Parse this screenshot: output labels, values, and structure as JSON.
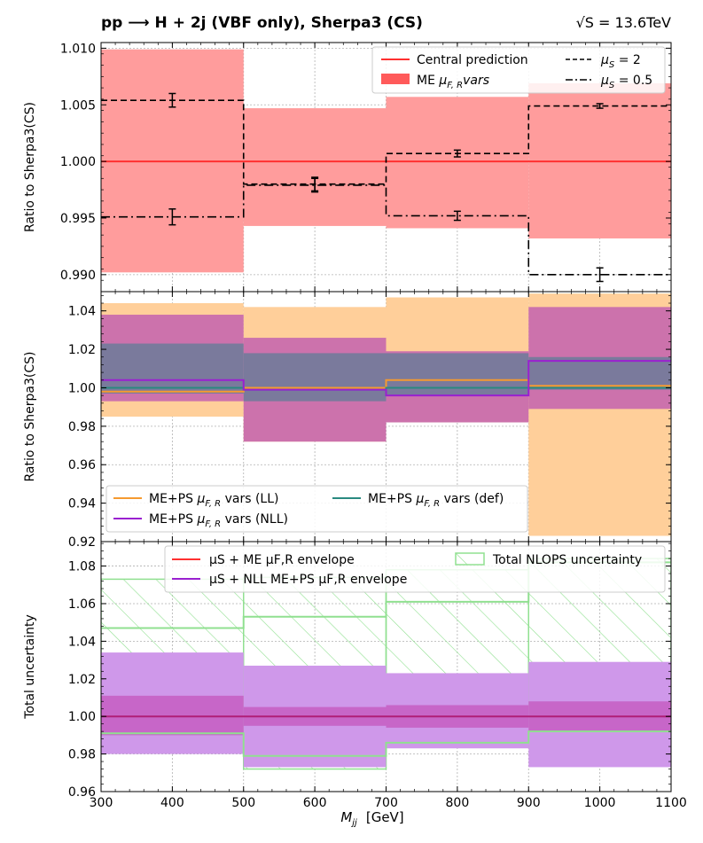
{
  "chart_data": {
    "title_left": "pp ⟶ H + 2j (VBF only), Sherpa3 (CS)",
    "title_right": "√S = 13.6TeV",
    "xlabel_sym": "M",
    "xlabel_sub": "jj",
    "xlabel_unit": "[GeV]",
    "xlim": [
      300,
      1100
    ],
    "xticks": [
      300,
      400,
      500,
      600,
      700,
      800,
      900,
      1000,
      1100
    ],
    "bin_edges": [
      300,
      500,
      700,
      900,
      1100
    ],
    "panels": [
      {
        "id": "scale",
        "type": "step",
        "ylabel": "Ratio to Sherpa3(CS)",
        "ylim": [
          0.9885,
          1.0105
        ],
        "yticks": [
          "0.990",
          "0.995",
          "1.000",
          "1.005",
          "1.010"
        ],
        "yticks_v": [
          0.99,
          0.995,
          1.0,
          1.005,
          1.01
        ],
        "bands": [
          {
            "name": "ME μF,R vars",
            "color": "#ff9c9c",
            "lo": [
              0.9902,
              0.9943,
              0.9941,
              0.9932
            ],
            "hi": [
              1.0099,
              1.0047,
              1.0057,
              1.0069
            ]
          }
        ],
        "series": [
          {
            "name": "Central prediction",
            "color": "#ff3030",
            "style": "solid",
            "values": [
              1.0,
              1.0,
              1.0,
              1.0
            ]
          },
          {
            "name": "μS = 2",
            "color": "#000000",
            "style": "dashed",
            "values": [
              1.0054,
              0.998,
              1.0007,
              1.0049
            ],
            "err": [
              0.0006,
              0.0006,
              0.0003,
              0.0002
            ]
          },
          {
            "name": "μS = 0.5",
            "color": "#000000",
            "style": "dashdot",
            "values": [
              0.9951,
              0.9979,
              0.9952,
              0.99
            ],
            "err": [
              0.0007,
              0.0006,
              0.0004,
              0.0006
            ]
          }
        ],
        "legend": {
          "central": "Central prediction",
          "me_main": "ME ",
          "me_mu": "μ",
          "me_sub": "F, R",
          "me_tail": "vars",
          "mus2_mu": "μ",
          "mus2_sub": "S",
          "mus2_val": " = 2",
          "mus05_mu": "μ",
          "mus05_sub": "S",
          "mus05_val": " = 0.5"
        }
      },
      {
        "id": "ps",
        "type": "step",
        "ylabel": "Ratio to Sherpa3(CS)",
        "ylim": [
          0.92,
          1.05
        ],
        "yticks": [
          "0.92",
          "0.94",
          "0.96",
          "0.98",
          "1.00",
          "1.02",
          "1.04"
        ],
        "yticks_v": [
          0.92,
          0.94,
          0.96,
          0.98,
          1.0,
          1.02,
          1.04
        ],
        "bands": [
          {
            "name": "ME+PS μF,R vars (LL)",
            "color": "#ffcf9a",
            "lo": [
              0.985,
              0.972,
              0.982,
              0.923
            ],
            "hi": [
              1.044,
              1.042,
              1.047,
              1.049
            ]
          },
          {
            "name": "ME+PS μF,R vars (NLL)",
            "color": "#cc72ac",
            "lo": [
              0.993,
              0.972,
              0.982,
              0.989
            ],
            "hi": [
              1.038,
              1.026,
              1.019,
              1.042
            ]
          },
          {
            "name": "ME+PS μF,R vars (def)",
            "color": "#7a7a9c",
            "lo": [
              0.997,
              0.993,
              0.996,
              0.999
            ],
            "hi": [
              1.023,
              1.018,
              1.018,
              1.016
            ]
          }
        ],
        "series": [
          {
            "name": "LL",
            "color": "#f59a30",
            "style": "solid",
            "values": [
              0.998,
              1.0,
              1.004,
              1.001
            ]
          },
          {
            "name": "def",
            "color": "#2a8a80",
            "style": "solid",
            "values": [
              1.0,
              0.999,
              1.0,
              1.0
            ]
          },
          {
            "name": "NLL",
            "color": "#9a20d0",
            "style": "solid",
            "values": [
              1.004,
              0.999,
              0.996,
              1.014
            ]
          }
        ],
        "legend": {
          "ll_pre": "ME+PS ",
          "ll_mu": "μ",
          "ll_sub": "F, R",
          "ll_post": " vars (LL)",
          "nll_pre": "ME+PS ",
          "nll_mu": "μ",
          "nll_sub": "F, R",
          "nll_post": " vars (NLL)",
          "def_pre": "ME+PS ",
          "def_mu": "μ",
          "def_sub": "F, R",
          "def_post": " vars (def)"
        }
      },
      {
        "id": "total",
        "type": "step",
        "ylabel": "Total uncertainty",
        "ylim": [
          0.96,
          1.093
        ],
        "yticks": [
          "0.96",
          "0.98",
          "1.00",
          "1.02",
          "1.04",
          "1.06",
          "1.08"
        ],
        "yticks_v": [
          0.96,
          0.98,
          1.0,
          1.02,
          1.04,
          1.06,
          1.08
        ],
        "bands": [
          {
            "name": "Total NLOPS uncertainty",
            "color": "#90e090",
            "hatch": true,
            "lo": [
              0.981,
              0.972,
              0.984,
              0.984
            ],
            "hi": [
              1.073,
              1.074,
              1.078,
              1.084
            ]
          },
          {
            "name": "μS + NLL ME+PS μF,R envelope",
            "color": "#cf98ea",
            "lo": [
              0.98,
              0.973,
              0.983,
              0.973
            ],
            "hi": [
              1.034,
              1.027,
              1.023,
              1.029
            ]
          },
          {
            "name": "μS + ME μF,R envelope",
            "color": "#c766c8",
            "lo": [
              0.99,
              0.995,
              0.994,
              0.992
            ],
            "hi": [
              1.011,
              1.005,
              1.006,
              1.008
            ]
          }
        ],
        "series": [
          {
            "name": "NLOPS upper",
            "color": "#90e090",
            "style": "solid",
            "values": [
              1.047,
              1.053,
              1.061,
              1.082
            ]
          },
          {
            "name": "NLOPS lower",
            "color": "#90e090",
            "style": "solid",
            "values": [
              0.991,
              0.979,
              0.986,
              0.992
            ]
          },
          {
            "name": "center",
            "color": "#b01e78",
            "style": "solid",
            "values": [
              1.0,
              1.0,
              1.0,
              1.0
            ]
          }
        ],
        "legend": {
          "me_env": "µS + ME µF,R envelope",
          "nll_env": "µS + NLL ME+PS µF,R envelope",
          "nlops": "Total NLOPS uncertainty"
        }
      }
    ]
  }
}
